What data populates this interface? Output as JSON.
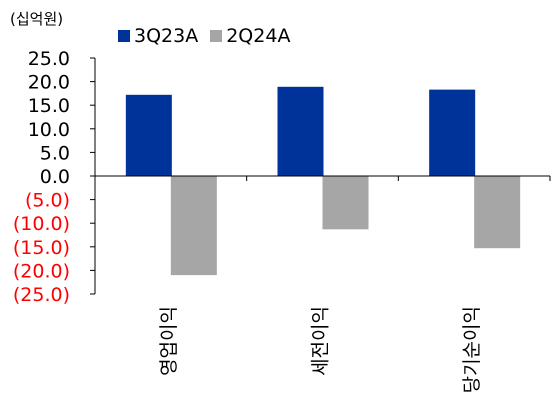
{
  "unit_label": "(십억원)",
  "colors": {
    "series_1": "#003399",
    "series_2": "#a6a6a6",
    "negative_tick": "#ff0000",
    "positive_tick": "#000000"
  },
  "chart_data": {
    "type": "bar",
    "categories": [
      "영업이익",
      "세전이익",
      "당기순이익"
    ],
    "series": [
      {
        "name": "3Q23A",
        "values": [
          17.2,
          18.9,
          18.3
        ]
      },
      {
        "name": "2Q24A",
        "values": [
          -21.0,
          -11.3,
          -15.3
        ]
      }
    ],
    "ylim": [
      -25,
      25
    ],
    "yticks": [
      25,
      20,
      15,
      10,
      5,
      0,
      -5,
      -10,
      -15,
      -20,
      -25
    ],
    "ytick_labels": [
      "25.0",
      "20.0",
      "15.0",
      "10.0",
      "5.0",
      "0.0",
      "(5.0)",
      "(10.0)",
      "(15.0)",
      "(20.0)",
      "(25.0)"
    ],
    "legend_position": "top",
    "grid": false
  }
}
